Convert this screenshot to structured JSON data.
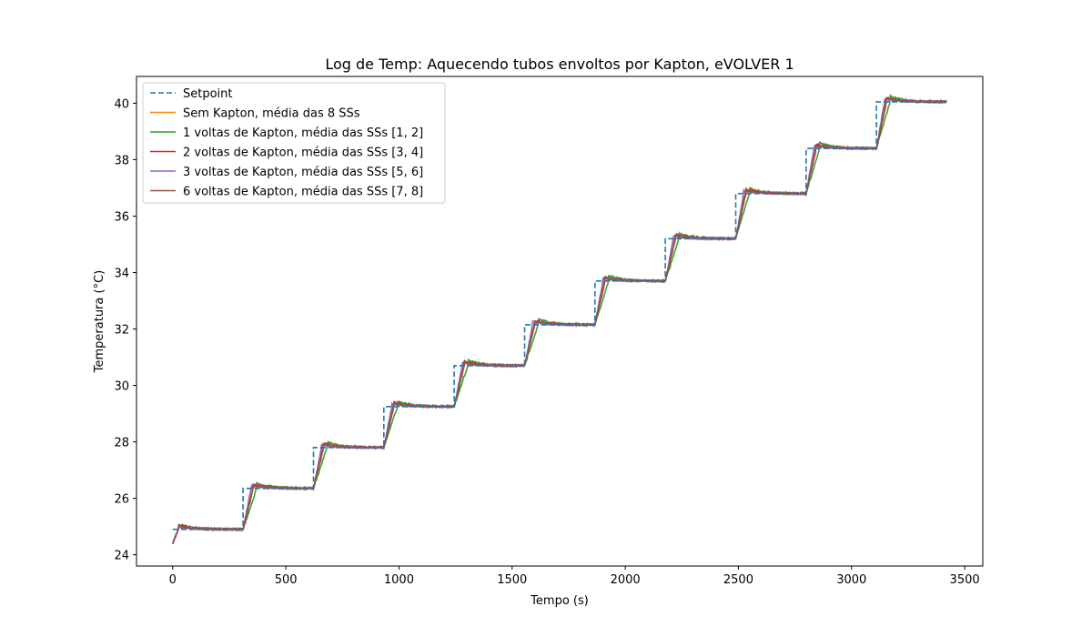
{
  "chart_data": {
    "type": "line",
    "title": "Log de Temp: Aquecendo tubos envoltos por Kapton, eVOLVER 1",
    "xlabel": "Tempo (s)",
    "ylabel": "Temperatura (°C)",
    "xlim": [
      -160,
      3580
    ],
    "ylim": [
      23.6,
      40.95
    ],
    "x_ticks": [
      0,
      500,
      1000,
      1500,
      2000,
      2500,
      3000,
      3500
    ],
    "y_ticks": [
      24,
      26,
      28,
      30,
      32,
      34,
      36,
      38,
      40
    ],
    "grid": false,
    "legend_position": "upper-left",
    "setpoint": {
      "name": "Setpoint",
      "color": "#1f77b4",
      "style": "dashed",
      "step_times": [
        0,
        311,
        622,
        933,
        1244,
        1555,
        1866,
        2177,
        2488,
        2799,
        3110,
        3420
      ],
      "levels": [
        24.9,
        26.35,
        27.8,
        29.25,
        30.7,
        32.15,
        33.7,
        35.2,
        36.8,
        38.4,
        40.05
      ]
    },
    "series": [
      {
        "name": "Sem Kapton, média das 8 SSs",
        "color": "#ff7f0e",
        "lag": 45,
        "overshoot": 0.12
      },
      {
        "name": "1 voltas de Kapton, média das SSs [1, 2]",
        "color": "#2ca02c",
        "lag": 60,
        "overshoot": 0.2
      },
      {
        "name": "2 voltas de Kapton, média das SSs [3, 4]",
        "color": "#d62728",
        "lag": 45,
        "overshoot": 0.15
      },
      {
        "name": "3 voltas de Kapton, média das SSs [5, 6]",
        "color": "#9467bd",
        "lag": 35,
        "overshoot": 0.1
      },
      {
        "name": "6 voltas de Kapton, média das SSs [7, 8]",
        "color": "#8c564b",
        "lag": 42,
        "overshoot": 0.12
      }
    ]
  }
}
